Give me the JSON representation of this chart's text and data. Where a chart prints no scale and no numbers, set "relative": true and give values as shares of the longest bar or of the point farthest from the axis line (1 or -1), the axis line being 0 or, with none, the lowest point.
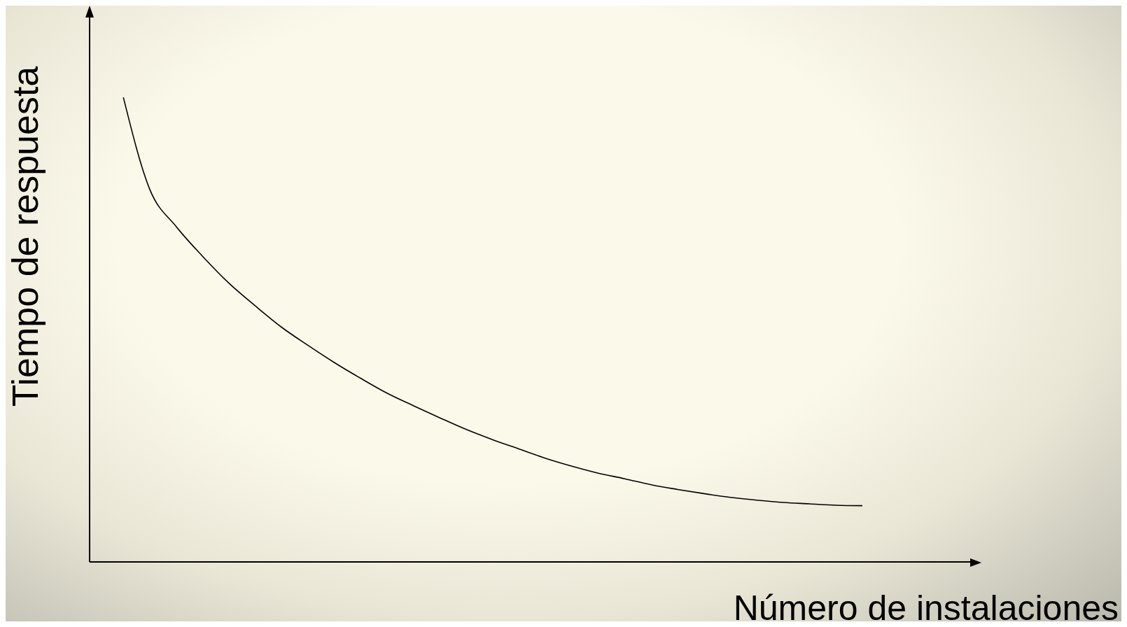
{
  "chart_data": {
    "type": "line",
    "relative": true,
    "xlabel": "Número de instalaciones",
    "ylabel": "Tiempo de respuesta",
    "categories": [
      null,
      null,
      null,
      null,
      null,
      null,
      null,
      null,
      null,
      null,
      null,
      null,
      null,
      null,
      null,
      null,
      null,
      null,
      null,
      null,
      null,
      null,
      null,
      null,
      null,
      null,
      null,
      null,
      null
    ],
    "series": [
      {
        "color": "#000000",
        "values": [
          1,
          0.802,
          0.722,
          0.658,
          0.6,
          0.551,
          0.505,
          0.466,
          0.429,
          0.395,
          0.363,
          0.336,
          0.31,
          0.285,
          0.263,
          0.243,
          0.223,
          0.206,
          0.191,
          0.179,
          0.166,
          0.156,
          0.147,
          0.139,
          0.133,
          0.128,
          0.125,
          0.122,
          0.121
        ]
      }
    ],
    "grid": false,
    "legend": false,
    "marker": "none",
    "line_style": "solid"
  }
}
